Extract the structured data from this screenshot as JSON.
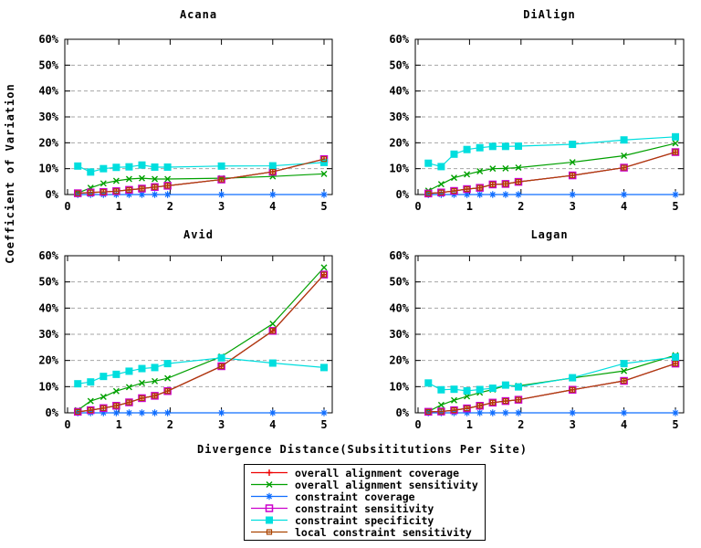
{
  "axes": {
    "ylabel": "Coefficient of Variation",
    "xlabel": "Divergence Distance(Subsititutions Per Site)",
    "yticks": [
      "0%",
      "10%",
      "20%",
      "30%",
      "40%",
      "50%",
      "60%"
    ],
    "xticks": [
      "0",
      "1",
      "2",
      "3",
      "4",
      "5"
    ],
    "ylim": [
      0,
      60
    ],
    "xlim": [
      0,
      5
    ],
    "grid": "dashed horizontal at 10-50%",
    "legend_position": "bottom-center"
  },
  "series_styles": [
    {
      "name": "overall alignment coverage",
      "color": "#ee0000",
      "marker": "plus"
    },
    {
      "name": "overall alignment sensitivity",
      "color": "#00a000",
      "marker": "x"
    },
    {
      "name": "constraint coverage",
      "color": "#0f6dff",
      "marker": "star"
    },
    {
      "name": "constraint sensitivity",
      "color": "#cc00cc",
      "marker": "open-square"
    },
    {
      "name": "constraint specificity",
      "color": "#00dede",
      "marker": "filled-square"
    },
    {
      "name": "local constraint sensitivity",
      "color": "#aa4400",
      "marker": "dot-square"
    }
  ],
  "chart_data": [
    {
      "type": "line",
      "title": "Acana",
      "x": [
        0.2,
        0.45,
        0.7,
        0.95,
        1.2,
        1.45,
        1.7,
        1.95,
        3.0,
        4.0,
        5.0
      ],
      "ylim": [
        0,
        60
      ],
      "series": [
        {
          "name": "overall alignment coverage",
          "values": [
            0.5,
            0.8,
            1.0,
            1.3,
            1.8,
            2.3,
            2.9,
            3.4,
            5.8,
            8.8,
            13.7
          ]
        },
        {
          "name": "overall alignment sensitivity",
          "values": [
            0.6,
            2.6,
            4.3,
            5.3,
            6.0,
            6.3,
            6.0,
            6.0,
            6.3,
            7.0,
            8.0
          ]
        },
        {
          "name": "constraint coverage",
          "values": [
            0,
            0,
            0,
            0,
            0,
            0,
            0,
            0,
            0,
            0,
            0
          ]
        },
        {
          "name": "constraint sensitivity",
          "values": [
            0.5,
            0.8,
            1.0,
            1.3,
            1.8,
            2.3,
            2.9,
            3.4,
            5.8,
            8.8,
            13.7
          ]
        },
        {
          "name": "constraint specificity",
          "values": [
            11.0,
            8.7,
            10.0,
            10.5,
            10.7,
            11.4,
            10.6,
            10.6,
            11.0,
            11.1,
            12.4
          ]
        },
        {
          "name": "local constraint sensitivity",
          "values": [
            0.5,
            0.8,
            1.0,
            1.3,
            1.8,
            2.3,
            2.9,
            3.4,
            5.8,
            8.8,
            13.7
          ]
        }
      ]
    },
    {
      "type": "line",
      "title": "DiAlign",
      "x": [
        0.2,
        0.45,
        0.7,
        0.95,
        1.2,
        1.45,
        1.7,
        1.95,
        3.0,
        4.0,
        5.0
      ],
      "ylim": [
        0,
        60
      ],
      "series": [
        {
          "name": "overall alignment coverage",
          "values": [
            0.4,
            0.8,
            1.4,
            2.1,
            2.6,
            3.9,
            4.1,
            4.9,
            7.4,
            10.4,
            16.4
          ]
        },
        {
          "name": "overall alignment sensitivity",
          "values": [
            1.5,
            4.0,
            6.5,
            7.8,
            9.0,
            10.0,
            10.1,
            10.4,
            12.5,
            15.0,
            19.8
          ]
        },
        {
          "name": "constraint coverage",
          "values": [
            0,
            0,
            0,
            0,
            0,
            0,
            0,
            0,
            0,
            0,
            0
          ]
        },
        {
          "name": "constraint sensitivity",
          "values": [
            0.4,
            0.8,
            1.4,
            2.1,
            2.6,
            3.9,
            4.1,
            4.9,
            7.4,
            10.4,
            16.4
          ]
        },
        {
          "name": "constraint specificity",
          "values": [
            12.1,
            10.8,
            15.6,
            17.4,
            18.1,
            18.6,
            18.6,
            18.7,
            19.4,
            21.1,
            22.3
          ]
        },
        {
          "name": "local constraint sensitivity",
          "values": [
            0.4,
            0.8,
            1.4,
            2.1,
            2.6,
            3.9,
            4.1,
            4.9,
            7.4,
            10.4,
            16.4
          ]
        }
      ]
    },
    {
      "type": "line",
      "title": "Avid",
      "x": [
        0.2,
        0.45,
        0.7,
        0.95,
        1.2,
        1.45,
        1.7,
        1.95,
        3.0,
        4.0,
        5.0
      ],
      "ylim": [
        0,
        60
      ],
      "series": [
        {
          "name": "overall alignment coverage",
          "values": [
            0.4,
            1.0,
            1.8,
            2.7,
            4.0,
            5.6,
            6.5,
            8.3,
            17.8,
            31.3,
            52.8
          ]
        },
        {
          "name": "overall alignment sensitivity",
          "values": [
            1.0,
            4.5,
            6.1,
            8.3,
            9.8,
            11.4,
            12.1,
            13.2,
            21.5,
            34.0,
            55.5
          ]
        },
        {
          "name": "constraint coverage",
          "values": [
            0,
            0,
            0,
            0,
            0,
            0,
            0,
            0,
            0,
            0,
            0
          ]
        },
        {
          "name": "constraint sensitivity",
          "values": [
            0.4,
            1.0,
            1.8,
            2.7,
            4.0,
            5.6,
            6.5,
            8.3,
            17.8,
            31.3,
            52.8
          ]
        },
        {
          "name": "constraint specificity",
          "values": [
            11.1,
            11.8,
            13.9,
            14.7,
            15.9,
            16.9,
            17.3,
            18.8,
            21.0,
            19.0,
            17.3
          ]
        },
        {
          "name": "local constraint sensitivity",
          "values": [
            0.4,
            1.0,
            1.8,
            2.7,
            4.0,
            5.6,
            6.5,
            8.3,
            17.8,
            31.3,
            52.8
          ]
        }
      ]
    },
    {
      "type": "line",
      "title": "Lagan",
      "x": [
        0.2,
        0.45,
        0.7,
        0.95,
        1.2,
        1.45,
        1.7,
        1.95,
        3.0,
        4.0,
        5.0
      ],
      "ylim": [
        0,
        60
      ],
      "series": [
        {
          "name": "overall alignment coverage",
          "values": [
            0.4,
            0.5,
            1.0,
            1.7,
            2.7,
            3.9,
            4.5,
            5.0,
            8.8,
            12.2,
            18.8
          ]
        },
        {
          "name": "overall alignment sensitivity",
          "values": [
            0.5,
            3.0,
            4.8,
            6.3,
            7.7,
            8.9,
            10.4,
            10.3,
            13.3,
            16.0,
            22.0
          ]
        },
        {
          "name": "constraint coverage",
          "values": [
            0,
            0,
            0,
            0,
            0,
            0,
            0,
            0,
            0,
            0,
            0
          ]
        },
        {
          "name": "constraint sensitivity",
          "values": [
            0.4,
            0.5,
            1.0,
            1.7,
            2.7,
            3.9,
            4.5,
            5.0,
            8.8,
            12.2,
            18.8
          ]
        },
        {
          "name": "constraint specificity",
          "values": [
            11.4,
            8.8,
            9.0,
            8.4,
            8.9,
            9.4,
            10.6,
            9.9,
            13.4,
            18.8,
            21.3
          ]
        },
        {
          "name": "local constraint sensitivity",
          "values": [
            0.4,
            0.5,
            1.0,
            1.7,
            2.7,
            3.9,
            4.5,
            5.0,
            8.8,
            12.2,
            18.8
          ]
        }
      ]
    }
  ]
}
